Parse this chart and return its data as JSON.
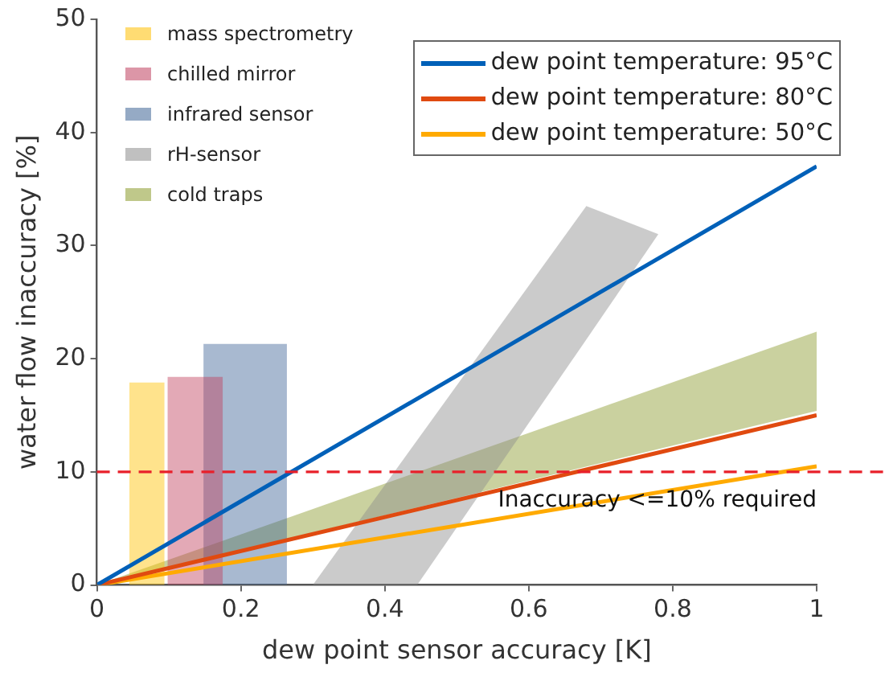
{
  "chart_data": {
    "type": "line",
    "xlabel": "dew point sensor accuracy [K]",
    "ylabel": "water flow inaccuracy [%]",
    "xlim": [
      0,
      1
    ],
    "xticks": [
      0,
      0.2,
      0.4,
      0.6,
      0.8,
      1
    ],
    "ylim": [
      0,
      50
    ],
    "yticks": [
      0,
      10,
      20,
      30,
      40,
      50
    ],
    "grid": false,
    "legend": "top",
    "marker": "none",
    "line_style": "solid",
    "series": [
      {
        "type": "area",
        "name": "mass spectrometry",
        "color": "#ffc000",
        "x": [
          0.045,
          0.094
        ],
        "values": [
          17.9,
          17.9
        ]
      },
      {
        "type": "area",
        "name": "chilled mirror",
        "color": "#c0405e",
        "x": [
          0.098,
          0.175
        ],
        "values": [
          18.4,
          18.4
        ]
      },
      {
        "type": "area",
        "name": "infrared sensor",
        "color": "#3e6496",
        "x": [
          0.148,
          0.264
        ],
        "values": [
          21.3,
          21.3
        ]
      },
      {
        "type": "line",
        "name": "rH-sensor",
        "color": "#8c8c8c",
        "x": [
          0.3,
          0.445,
          0.68,
          0.78
        ],
        "values": [
          null,
          null,
          null,
          null
        ],
        "lower": [
          0,
          0,
          21.7,
          31
        ],
        "upper": [
          0,
          12.8,
          33.5,
          31
        ]
      },
      {
        "type": "line",
        "name": "cold traps",
        "color": "#8a9a2a",
        "x": [
          0,
          1
        ],
        "values": [
          null,
          null
        ],
        "lower": [
          0,
          15.4
        ],
        "upper": [
          0,
          22.4
        ]
      },
      {
        "name": "dew point temperature: 95°C",
        "color": "#0060b8",
        "x": [
          0,
          1
        ],
        "values": [
          0,
          37
        ]
      },
      {
        "name": "dew point temperature: 80°C",
        "color": "#e04a10",
        "x": [
          0,
          1
        ],
        "values": [
          0,
          15
        ]
      },
      {
        "name": "dew point temperature: 50°C",
        "color": "#ffaa00",
        "x": [
          0,
          1
        ],
        "values": [
          0,
          10.5
        ]
      }
    ],
    "ref_lines": [
      {
        "axis": "y",
        "value": 10,
        "label": "Inaccuracy <=10% required",
        "color": "#e8202a",
        "line_style": "dashed"
      }
    ]
  }
}
